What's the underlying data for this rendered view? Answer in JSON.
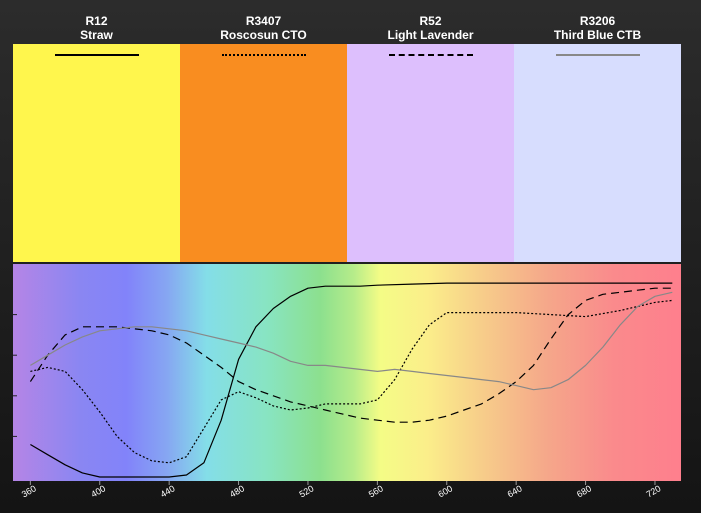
{
  "chart_data": {
    "type": "line",
    "title": "",
    "xlabel": "",
    "ylabel": "",
    "xlim": [
      350,
      735
    ],
    "ylim": [
      0,
      100
    ],
    "x_ticks": [
      360,
      400,
      440,
      480,
      520,
      560,
      600,
      640,
      680,
      720
    ],
    "spectrum_background": true,
    "grid": false,
    "legend_placement": "top",
    "series": [
      {
        "code": "R12",
        "name": "Straw",
        "swatch_color": "#fff64d",
        "line_style": "solid",
        "line_color": "#000000",
        "x": [
          360,
          370,
          380,
          390,
          400,
          410,
          420,
          430,
          440,
          450,
          460,
          470,
          480,
          490,
          500,
          510,
          520,
          530,
          540,
          550,
          560,
          580,
          600,
          620,
          640,
          660,
          680,
          700,
          720,
          730
        ],
        "y": [
          16,
          11,
          6,
          2,
          0,
          0,
          0,
          0,
          0,
          1,
          7,
          28,
          58,
          74,
          83,
          89,
          93,
          94,
          94,
          94,
          94.5,
          95,
          95.5,
          95.5,
          95.5,
          95.5,
          95.5,
          95.5,
          95.5,
          95.5
        ]
      },
      {
        "code": "R3407",
        "name": "Roscosun CTO",
        "swatch_color": "#f98d20",
        "line_style": "dotted",
        "line_color": "#000000",
        "x": [
          360,
          370,
          380,
          390,
          400,
          410,
          420,
          430,
          440,
          450,
          460,
          470,
          480,
          490,
          500,
          510,
          520,
          530,
          540,
          550,
          560,
          570,
          580,
          590,
          600,
          620,
          640,
          660,
          680,
          700,
          720,
          730
        ],
        "y": [
          52,
          54,
          52,
          43,
          32,
          20,
          12,
          8,
          7,
          10,
          24,
          38,
          42,
          39,
          35,
          33,
          34,
          36,
          36,
          36,
          38,
          48,
          63,
          75,
          81,
          81,
          81,
          80,
          79,
          82,
          86,
          87
        ]
      },
      {
        "code": "R52",
        "name": "Light Lavender",
        "swatch_color": "#ddbffd",
        "line_style": "dashed",
        "line_color": "#000000",
        "x": [
          360,
          370,
          380,
          390,
          400,
          410,
          420,
          430,
          440,
          450,
          460,
          470,
          480,
          490,
          500,
          510,
          520,
          530,
          540,
          550,
          560,
          570,
          580,
          590,
          600,
          610,
          620,
          630,
          640,
          650,
          660,
          670,
          680,
          690,
          700,
          710,
          720,
          730
        ],
        "y": [
          47,
          60,
          70,
          74,
          74,
          74,
          73,
          72,
          70,
          66,
          60,
          54,
          47,
          43,
          40,
          37,
          35,
          33,
          31,
          29,
          28,
          27,
          27,
          28,
          30,
          33,
          36,
          41,
          47,
          55,
          68,
          80,
          87,
          90,
          91,
          92,
          93,
          93
        ]
      },
      {
        "code": "R3206",
        "name": "Third Blue CTB",
        "swatch_color": "#d7ddfe",
        "line_style": "solid",
        "line_color": "#888888",
        "x": [
          360,
          370,
          380,
          390,
          400,
          410,
          420,
          430,
          440,
          450,
          460,
          470,
          480,
          490,
          500,
          510,
          520,
          530,
          540,
          550,
          560,
          570,
          580,
          590,
          600,
          610,
          620,
          630,
          640,
          650,
          660,
          670,
          680,
          690,
          700,
          710,
          720,
          730
        ],
        "y": [
          55,
          60,
          65,
          69,
          72,
          73,
          74,
          74,
          73,
          72,
          70,
          68,
          66,
          64,
          61,
          57,
          55,
          55,
          54,
          53,
          52,
          53,
          52,
          51,
          50,
          49,
          48,
          47,
          45,
          43,
          44,
          48,
          55,
          64,
          75,
          84,
          89,
          91
        ]
      }
    ]
  }
}
